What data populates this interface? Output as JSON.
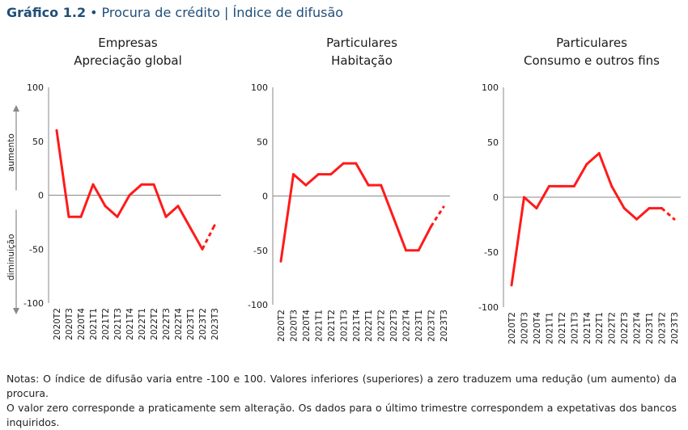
{
  "header": {
    "number": "Gráfico 1.2",
    "title": "Procura de crédito | Índice de difusão"
  },
  "notes": [
    "Notas: O índice de difusão varia entre -100 e 100. Valores inferiores (superiores) a zero traduzem uma redução (um aumento) da procura.",
    "O valor zero corresponde a praticamente sem alteração. Os dados para o último trimestre correspondem a expetativas dos bancos inquiridos."
  ],
  "colors": {
    "series": "#ff1a1a",
    "axis": "#888888",
    "text": "#1a1a1a",
    "accent": "#1f4e79"
  },
  "chart_data": [
    {
      "type": "line",
      "title": "Empresas",
      "subtitle": "Apreciação global",
      "categories": [
        "2020T2",
        "2020T3",
        "2020T4",
        "2021T1",
        "2021T2",
        "2021T3",
        "2021T4",
        "2022T1",
        "2022T2",
        "2022T3",
        "2022T4",
        "2023T1",
        "2023T2",
        "2023T3"
      ],
      "values": [
        60,
        -20,
        -20,
        10,
        -10,
        -20,
        0,
        10,
        10,
        -20,
        -10,
        -30,
        -50,
        -28
      ],
      "last_point_expectation": true,
      "ylim": [
        -100,
        100
      ],
      "yticks": [
        100,
        50,
        0,
        -50,
        -100
      ],
      "arrow_up_label": "aumento",
      "arrow_down_label": "diminuição"
    },
    {
      "type": "line",
      "title": "Particulares",
      "subtitle": "Habitação",
      "categories": [
        "2020T2",
        "2020T3",
        "2020T4",
        "2021T1",
        "2021T2",
        "2021T3",
        "2021T4",
        "2022T1",
        "2022T2",
        "2022T3",
        "2022T4",
        "2023T1",
        "2023T2",
        "2023T3"
      ],
      "values": [
        -60,
        20,
        10,
        20,
        20,
        30,
        30,
        10,
        10,
        -20,
        -50,
        -50,
        -28,
        -10
      ],
      "last_point_expectation": true,
      "ylim": [
        -100,
        100
      ],
      "yticks": [
        100,
        50,
        0,
        -50,
        -100
      ]
    },
    {
      "type": "line",
      "title": "Particulares",
      "subtitle": "Consumo e outros fins",
      "categories": [
        "2020T2",
        "2020T3",
        "2020T4",
        "2021T1",
        "2021T2",
        "2021T3",
        "2021T4",
        "2022T1",
        "2022T2",
        "2022T3",
        "2022T4",
        "2023T1",
        "2023T2",
        "2023T3"
      ],
      "values": [
        -80,
        0,
        -10,
        10,
        10,
        10,
        30,
        40,
        10,
        -10,
        -20,
        -10,
        -10,
        -20
      ],
      "last_point_expectation": true,
      "ylim": [
        -100,
        100
      ],
      "yticks": [
        100,
        50,
        0,
        -50,
        -100
      ]
    }
  ]
}
